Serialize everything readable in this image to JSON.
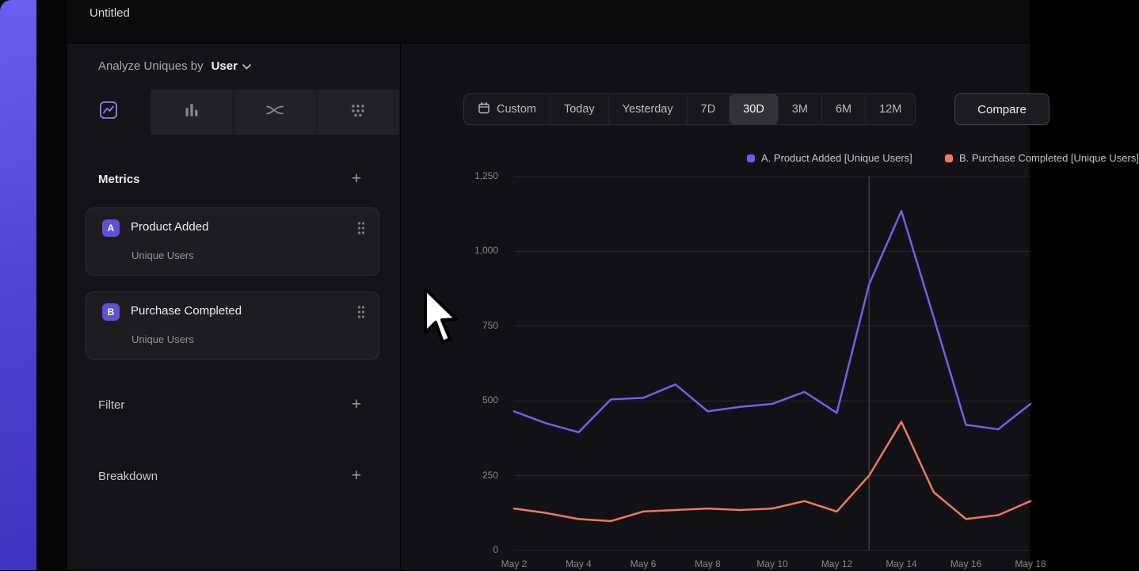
{
  "window": {
    "title": "Untitled"
  },
  "panel": {
    "analyze_label": "Analyze Uniques by",
    "analyze_value": "User",
    "metrics": {
      "title": "Metrics",
      "add_label": "+",
      "items": [
        {
          "badge": "A",
          "name": "Product Added",
          "subtitle": "Unique Users"
        },
        {
          "badge": "B",
          "name": "Purchase Completed",
          "subtitle": "Unique Users"
        }
      ]
    },
    "filter": {
      "title": "Filter",
      "add_label": "+"
    },
    "breakdown": {
      "title": "Breakdown",
      "add_label": "+"
    }
  },
  "toolbar": {
    "custom_label": "Custom",
    "ranges": [
      "Today",
      "Yesterday",
      "7D",
      "30D",
      "3M",
      "6M",
      "12M"
    ],
    "selected_range": "30D",
    "compare_label": "Compare"
  },
  "colors": {
    "accent_purple": "#6c5ce7",
    "accent_orange": "#f0795a",
    "grid": "#26262b",
    "marker_line": "#3c3c44"
  },
  "chart_data": {
    "type": "line",
    "x": [
      "May 2",
      "May 3",
      "May 4",
      "May 5",
      "May 6",
      "May 7",
      "May 8",
      "May 9",
      "May 10",
      "May 11",
      "May 12",
      "May 13",
      "May 14",
      "May 15",
      "May 16",
      "May 17",
      "May 18"
    ],
    "x_tick_step": 2,
    "ylim": [
      0,
      1250
    ],
    "yticks": [
      "0",
      "250",
      "500",
      "750",
      "1,000",
      "1,250"
    ],
    "grid": true,
    "legend_position": "top-right",
    "marker_x": "May 13",
    "series": [
      {
        "name": "A. Product Added [Unique Users]",
        "color": "#6f61ea",
        "values": [
          465,
          425,
          395,
          505,
          510,
          555,
          465,
          480,
          490,
          530,
          460,
          890,
          1135,
          780,
          420,
          405,
          490
        ]
      },
      {
        "name": "B. Purchase Completed [Unique Users]",
        "color": "#f0795a",
        "values": [
          140,
          125,
          105,
          98,
          130,
          135,
          140,
          135,
          140,
          165,
          130,
          250,
          430,
          195,
          105,
          118,
          165
        ]
      }
    ]
  }
}
